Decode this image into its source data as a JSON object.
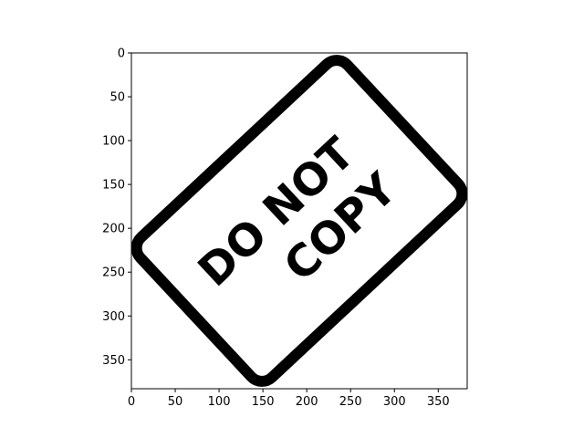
{
  "image": {
    "type": "image-plot",
    "xlim": [
      0,
      383
    ],
    "ylim": [
      383,
      0
    ],
    "x_ticks": [
      "0",
      "50",
      "100",
      "150",
      "200",
      "250",
      "300",
      "350"
    ],
    "y_ticks": [
      "0",
      "50",
      "100",
      "150",
      "200",
      "250",
      "300",
      "350"
    ],
    "content": {
      "kind": "rubber-stamp",
      "line1": "DO NOT",
      "line2": "COPY",
      "ink_color": "#000000",
      "paper_color": "#ffffff",
      "rotation_deg": -43
    }
  }
}
